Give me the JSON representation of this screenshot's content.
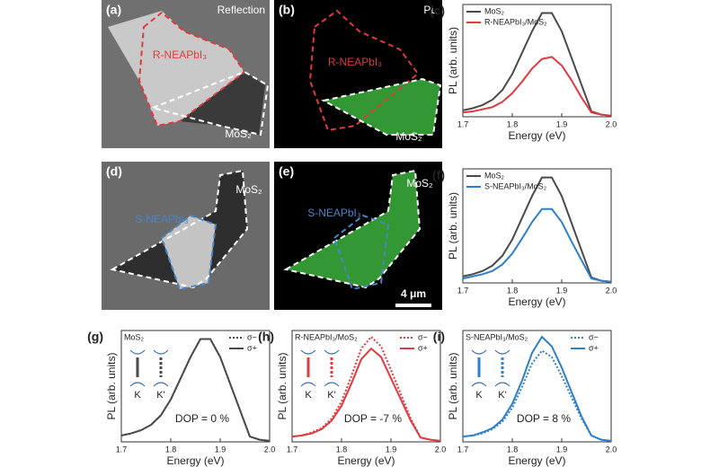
{
  "panels": [
    {
      "label": "(a)",
      "corner": "Reflection",
      "flake": "R-NEAPbI₃",
      "substrate": "MoS₂"
    },
    {
      "label": "(b)",
      "corner": "PL",
      "flake": "R-NEAPbI₃",
      "substrate": "MoS₂"
    },
    {
      "label": "(d)",
      "flake": "S-NEAPbI₃",
      "substrate": "MoS₂"
    },
    {
      "label": "(e)",
      "flake": "S-NEAPbI₃",
      "substrate": "MoS₂",
      "scale_bar": "4 μm"
    }
  ],
  "chart_data": [
    {
      "type": "line",
      "label": "(c)",
      "xlabel": "Energy (eV)",
      "ylabel": "PL (arb. units)",
      "legend": "upper-left",
      "x": [
        1.7,
        1.72,
        1.74,
        1.76,
        1.78,
        1.8,
        1.82,
        1.84,
        1.86,
        1.88,
        1.9,
        1.92,
        1.94,
        1.96,
        1.98,
        2.0
      ],
      "xlim": [
        1.7,
        2.0
      ],
      "xticks": [
        1.7,
        1.8,
        1.9,
        {
          "value": 2.0,
          "label": "2.0"
        }
      ],
      "ylim": [
        0,
        1.05
      ],
      "series": [
        {
          "name": "MoS₂",
          "color": "#4a4a4a",
          "dash": false,
          "values": [
            0.06,
            0.08,
            0.11,
            0.16,
            0.25,
            0.4,
            0.6,
            0.8,
            0.97,
            0.97,
            0.8,
            0.55,
            0.3,
            0.05,
            0.02,
            0.01
          ]
        },
        {
          "name": "R-NEAPbI₃/MoS₂",
          "color": "#e0393e",
          "dash": false,
          "values": [
            0.04,
            0.05,
            0.07,
            0.09,
            0.14,
            0.22,
            0.33,
            0.45,
            0.54,
            0.56,
            0.48,
            0.34,
            0.18,
            0.04,
            0.02,
            0.01
          ]
        }
      ]
    },
    {
      "type": "line",
      "label": "(f)",
      "xlabel": "Energy (eV)",
      "ylabel": "PL (arb. units)",
      "legend": "upper-left",
      "x": [
        1.7,
        1.72,
        1.74,
        1.76,
        1.78,
        1.8,
        1.82,
        1.84,
        1.86,
        1.88,
        1.9,
        1.92,
        1.94,
        1.96,
        1.98,
        2.0
      ],
      "xlim": [
        1.7,
        2.0
      ],
      "xticks": [
        1.7,
        1.8,
        1.9,
        {
          "value": 2.0,
          "label": "2.0"
        }
      ],
      "ylim": [
        0,
        1.05
      ],
      "series": [
        {
          "name": "MoS₂",
          "color": "#4a4a4a",
          "dash": false,
          "values": [
            0.06,
            0.08,
            0.11,
            0.16,
            0.25,
            0.4,
            0.6,
            0.8,
            0.97,
            0.97,
            0.8,
            0.55,
            0.3,
            0.05,
            0.02,
            0.01
          ]
        },
        {
          "name": "S-NEAPbI₃/MoS₂",
          "color": "#2f7fc9",
          "dash": false,
          "values": [
            0.04,
            0.06,
            0.08,
            0.11,
            0.17,
            0.27,
            0.41,
            0.56,
            0.68,
            0.68,
            0.56,
            0.38,
            0.21,
            0.04,
            0.02,
            0.01
          ]
        }
      ]
    },
    {
      "type": "line",
      "label": "(g)",
      "inset_title": "MoS₂",
      "valley_labels": [
        "K",
        "K'"
      ],
      "annotation": "DOP = 0 %",
      "xlabel": "Energy (eV)",
      "ylabel": "PL (arb. units)",
      "legend": "upper-right",
      "x": [
        1.7,
        1.72,
        1.74,
        1.76,
        1.78,
        1.8,
        1.82,
        1.84,
        1.86,
        1.88,
        1.9,
        1.92,
        1.94,
        1.96,
        1.98,
        2.0
      ],
      "xlim": [
        1.7,
        2.0
      ],
      "xticks": [
        1.7,
        1.8,
        1.9,
        {
          "value": 2.0,
          "label": "2.0"
        }
      ],
      "ylim": [
        0,
        1.05
      ],
      "series": [
        {
          "name": "σ−",
          "color": "#4a4a4a",
          "dash": true,
          "values": [
            0.06,
            0.08,
            0.11,
            0.16,
            0.25,
            0.4,
            0.6,
            0.8,
            0.97,
            0.97,
            0.8,
            0.55,
            0.3,
            0.05,
            0.02,
            0.01
          ]
        },
        {
          "name": "σ+",
          "color": "#4a4a4a",
          "dash": false,
          "values": [
            0.06,
            0.08,
            0.11,
            0.16,
            0.25,
            0.4,
            0.6,
            0.8,
            0.97,
            0.97,
            0.8,
            0.55,
            0.3,
            0.05,
            0.02,
            0.01
          ]
        }
      ]
    },
    {
      "type": "line",
      "label": "(h)",
      "inset_title": "R-NEAPbI₃/MoS₂",
      "valley_labels": [
        "K",
        "K'"
      ],
      "annotation": "DOP = -7 %",
      "xlabel": "Energy (eV)",
      "ylabel": "PL (arb. units)",
      "legend": "upper-right",
      "x": [
        1.7,
        1.72,
        1.74,
        1.76,
        1.78,
        1.8,
        1.82,
        1.84,
        1.86,
        1.88,
        1.9,
        1.92,
        1.94,
        1.96,
        1.98,
        2.0
      ],
      "xlim": [
        1.7,
        2.0
      ],
      "xticks": [
        1.7,
        1.8,
        1.9,
        {
          "value": 2.0,
          "label": "2.0"
        }
      ],
      "ylim": [
        0,
        1.05
      ],
      "series": [
        {
          "name": "σ−",
          "color": "#e0393e",
          "dash": true,
          "values": [
            0.05,
            0.06,
            0.09,
            0.13,
            0.22,
            0.38,
            0.62,
            0.88,
            0.99,
            0.9,
            0.68,
            0.45,
            0.22,
            0.04,
            0.02,
            0.01
          ]
        },
        {
          "name": "σ+",
          "color": "#e0393e",
          "dash": false,
          "values": [
            0.05,
            0.06,
            0.08,
            0.12,
            0.2,
            0.34,
            0.55,
            0.78,
            0.88,
            0.8,
            0.6,
            0.4,
            0.2,
            0.04,
            0.02,
            0.01
          ]
        }
      ]
    },
    {
      "type": "line",
      "label": "(i)",
      "inset_title": "S-NEAPbI₃/MoS₂",
      "valley_labels": [
        "K",
        "K'"
      ],
      "annotation": "DOP = 8 %",
      "xlabel": "Energy (eV)",
      "ylabel": "PL (arb. units)",
      "legend": "upper-right",
      "x": [
        1.7,
        1.72,
        1.74,
        1.76,
        1.78,
        1.8,
        1.82,
        1.84,
        1.86,
        1.88,
        1.9,
        1.92,
        1.94,
        1.96,
        1.98,
        2.0
      ],
      "xlim": [
        1.7,
        2.0
      ],
      "xticks": [
        1.7,
        1.8,
        1.9,
        {
          "value": 2.0,
          "label": "2.0"
        }
      ],
      "ylim": [
        0,
        1.05
      ],
      "series": [
        {
          "name": "σ−",
          "color": "#2f7fc9",
          "dash": true,
          "values": [
            0.05,
            0.06,
            0.08,
            0.12,
            0.19,
            0.32,
            0.52,
            0.74,
            0.86,
            0.8,
            0.62,
            0.42,
            0.22,
            0.06,
            0.02,
            0.01
          ]
        },
        {
          "name": "σ+",
          "color": "#2f7fc9",
          "dash": false,
          "values": [
            0.05,
            0.06,
            0.09,
            0.13,
            0.21,
            0.36,
            0.58,
            0.84,
            0.99,
            0.9,
            0.7,
            0.47,
            0.24,
            0.06,
            0.02,
            0.01
          ]
        }
      ]
    }
  ]
}
